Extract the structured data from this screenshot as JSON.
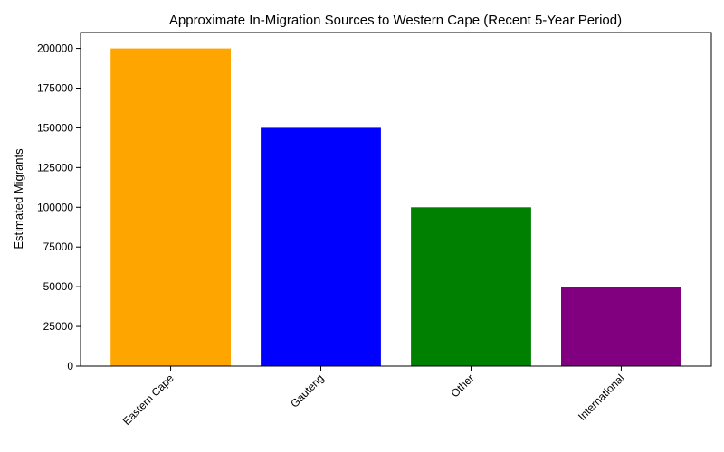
{
  "chart_data": {
    "type": "bar",
    "title": "Approximate In-Migration Sources to Western Cape (Recent 5-Year Period)",
    "xlabel": "",
    "ylabel": "Estimated Migrants",
    "categories": [
      "Eastern Cape",
      "Gauteng",
      "Other",
      "International"
    ],
    "values": [
      200000,
      150000,
      100000,
      50000
    ],
    "colors": [
      "#FFA500",
      "#0000FF",
      "#008000",
      "#800080"
    ],
    "ylim": [
      0,
      210000
    ],
    "yticks": [
      0,
      25000,
      50000,
      75000,
      100000,
      125000,
      150000,
      175000,
      200000
    ],
    "grid": false,
    "legend": false
  }
}
